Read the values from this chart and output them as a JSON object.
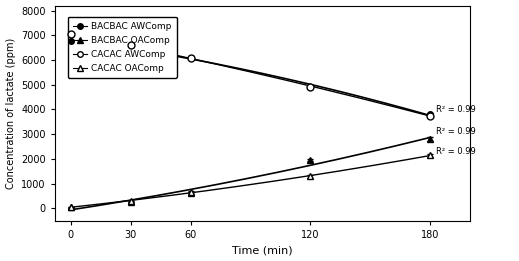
{
  "time": [
    0,
    30,
    60,
    120,
    180
  ],
  "bacbac_awcomp": [
    6750,
    6600,
    6080,
    4900,
    3800
  ],
  "bacbac_awcomp_err": [
    70,
    50,
    50,
    50,
    60
  ],
  "bacbac_oacomp": [
    50,
    250,
    620,
    1950,
    2800
  ],
  "bacbac_oacomp_err": [
    20,
    20,
    30,
    50,
    80
  ],
  "cacac_awcomp": [
    7050,
    6600,
    6100,
    4900,
    3750
  ],
  "cacac_awcomp_err": [
    70,
    50,
    50,
    50,
    60
  ],
  "cacac_oacomp": [
    50,
    300,
    680,
    1300,
    2150
  ],
  "cacac_oacomp_err": [
    20,
    20,
    30,
    50,
    60
  ],
  "ylabel": "Concentration of lactate (ppm)",
  "xlabel": "Time (min)",
  "ylim": [
    -500,
    8200
  ],
  "yticks": [
    0,
    1000,
    2000,
    3000,
    4000,
    5000,
    6000,
    7000,
    8000
  ],
  "xticks": [
    0,
    30,
    60,
    120,
    180
  ],
  "r2_awcomp_text": "R² = 0.99",
  "r2_bacbac_oacomp_text": "R² = 0.99",
  "r2_cacac_oacomp_text": "R² = 0.99",
  "legend_labels": [
    "BACBAC AWComp",
    "BACBAC OAComp",
    "CACAC AWComp",
    "CACAC OAComp"
  ],
  "background": "#ffffff"
}
